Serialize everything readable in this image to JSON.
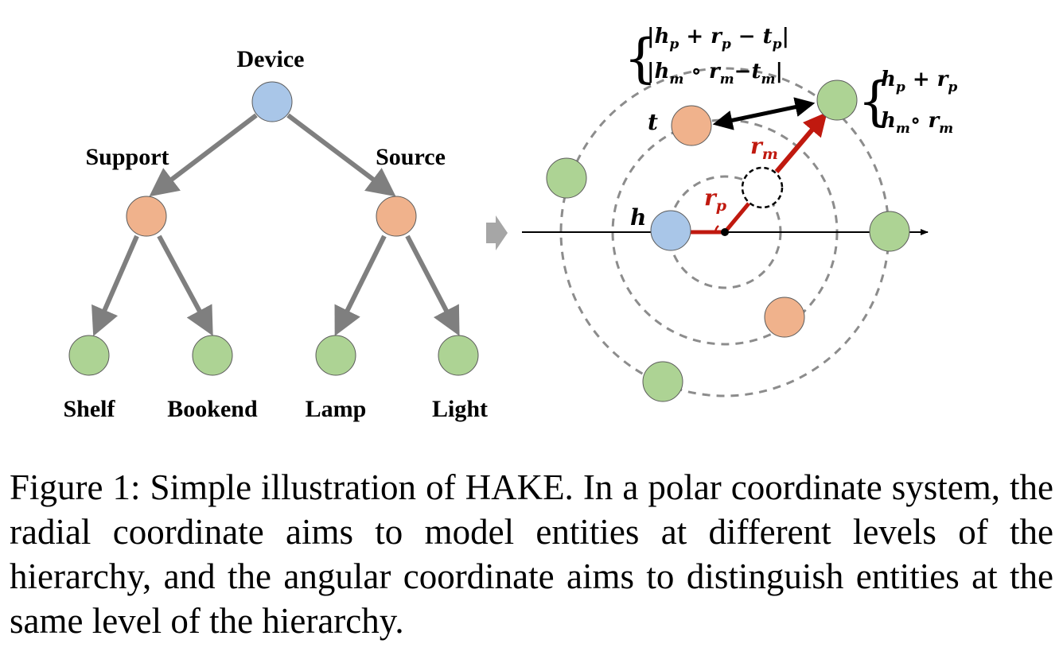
{
  "tree": {
    "root": "Device",
    "level1": [
      "Support",
      "Source"
    ],
    "level2": [
      "Shelf",
      "Bookend",
      "Lamp",
      "Light"
    ]
  },
  "polar": {
    "formula_left": [
      "|h",
      "p",
      " + r",
      "p",
      " − t",
      "p",
      "|"
    ],
    "formula_left_line2": [
      "|h",
      "m",
      " ∘ r",
      "m",
      "−t",
      "m",
      "|"
    ],
    "formula_right_line1": [
      "h",
      "p",
      " + r",
      "p"
    ],
    "formula_right_line2": [
      "h",
      "m",
      "∘ r",
      "m"
    ],
    "label_t": "t",
    "label_h": "h",
    "label_rm": [
      "r",
      "m"
    ],
    "label_rp": [
      "r",
      "p"
    ]
  },
  "colors": {
    "blue": "#a9c6e8",
    "orange": "#f0b28c",
    "green": "#add394",
    "arrow_gray": "#7f7f7f",
    "red": "#c0190f"
  },
  "caption": "Figure 1: Simple illustration of HAKE. In a polar coordinate system, the radial coordinate aims to model entities at different levels of the hierarchy, and the angular coordinate aims to distinguish entities at the same level of the hierarchy."
}
